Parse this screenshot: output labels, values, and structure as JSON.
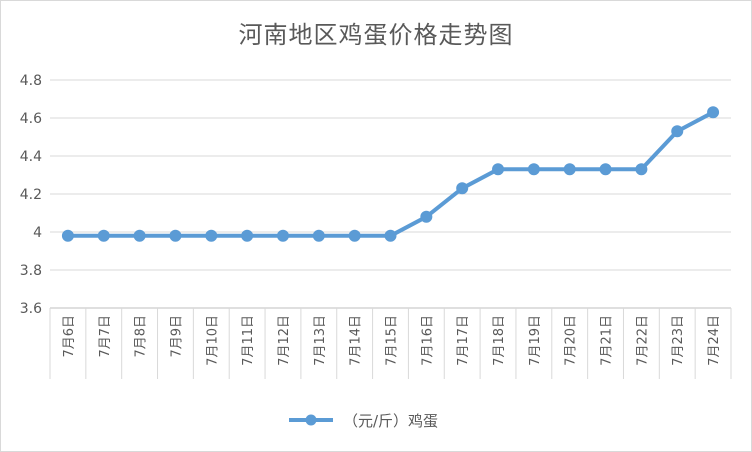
{
  "chart_data": {
    "type": "line",
    "title": "河南地区鸡蛋价格走势图",
    "xlabel": "",
    "ylabel": "",
    "categories": [
      "7月6日",
      "7月7日",
      "7月8日",
      "7月9日",
      "7月10日",
      "7月11日",
      "7月12日",
      "7月13日",
      "7月14日",
      "7月15日",
      "7月16日",
      "7月17日",
      "7月18日",
      "7月19日",
      "7月20日",
      "7月21日",
      "7月22日",
      "7月23日",
      "7月24日"
    ],
    "series": [
      {
        "name": "（元/斤）鸡蛋",
        "values": [
          3.98,
          3.98,
          3.98,
          3.98,
          3.98,
          3.98,
          3.98,
          3.98,
          3.98,
          3.98,
          4.08,
          4.23,
          4.33,
          4.33,
          4.33,
          4.33,
          4.33,
          4.53,
          4.63
        ],
        "color": "#5b9bd5"
      }
    ],
    "ylim": [
      3.6,
      4.8
    ],
    "yticks": [
      "3.6",
      "3.8",
      "4",
      "4.2",
      "4.4",
      "4.6",
      "4.8"
    ],
    "grid": true,
    "legend_position": "bottom"
  }
}
